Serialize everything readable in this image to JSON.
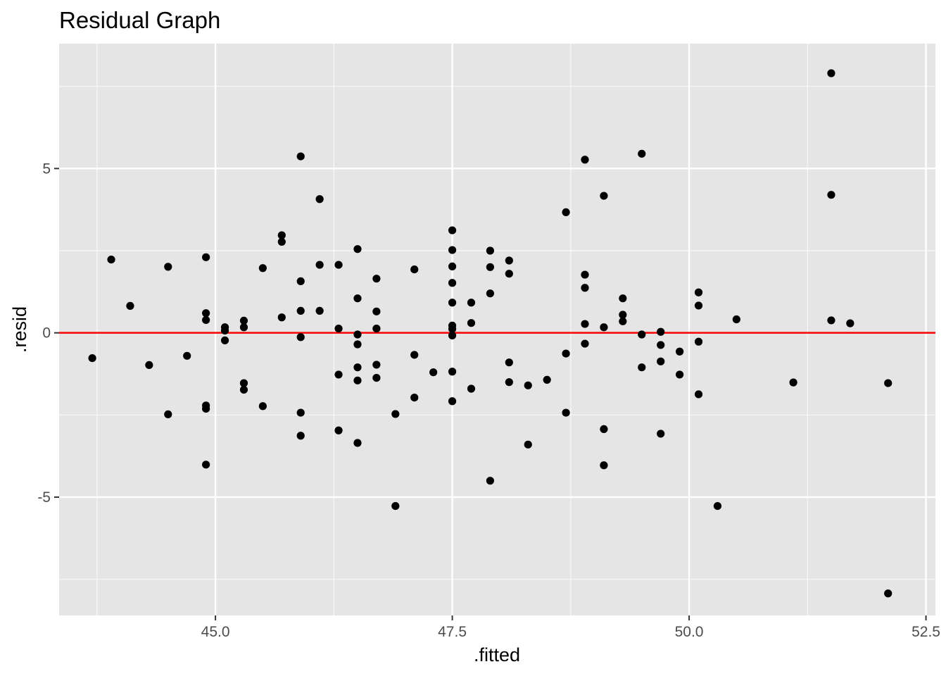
{
  "chart_data": {
    "type": "scatter",
    "title": "Residual Graph",
    "xlabel": ".fitted",
    "ylabel": ".resid",
    "xlim": [
      43.35,
      52.6
    ],
    "ylim": [
      -8.6,
      8.8
    ],
    "x_ticks": [
      45.0,
      47.5,
      50.0,
      52.5
    ],
    "x_tick_labels": [
      "45.0",
      "47.5",
      "50.0",
      "52.5"
    ],
    "y_ticks": [
      -5,
      0,
      5
    ],
    "y_tick_labels": [
      "-5",
      "0",
      "5"
    ],
    "grid": true,
    "panel_background": "#e5e5e5",
    "grid_color": "#ffffff",
    "point_color": "#000000",
    "reference_line": {
      "y": 0,
      "color": "#ff0000"
    },
    "points": [
      {
        "x": 43.7,
        "y": -0.77
      },
      {
        "x": 43.9,
        "y": 2.23
      },
      {
        "x": 44.1,
        "y": 0.82
      },
      {
        "x": 44.3,
        "y": -0.98
      },
      {
        "x": 44.5,
        "y": 2.01
      },
      {
        "x": 44.5,
        "y": -2.48
      },
      {
        "x": 44.7,
        "y": -0.7
      },
      {
        "x": 44.9,
        "y": 2.3
      },
      {
        "x": 44.9,
        "y": 0.6
      },
      {
        "x": 44.9,
        "y": 0.39
      },
      {
        "x": 44.9,
        "y": -2.21
      },
      {
        "x": 44.9,
        "y": -2.31
      },
      {
        "x": 44.9,
        "y": -4.01
      },
      {
        "x": 45.1,
        "y": 0.17
      },
      {
        "x": 45.1,
        "y": 0.07
      },
      {
        "x": 45.1,
        "y": -0.23
      },
      {
        "x": 45.3,
        "y": 0.37
      },
      {
        "x": 45.3,
        "y": 0.17
      },
      {
        "x": 45.3,
        "y": -1.53
      },
      {
        "x": 45.3,
        "y": -1.73
      },
      {
        "x": 45.5,
        "y": 1.97
      },
      {
        "x": 45.5,
        "y": -2.23
      },
      {
        "x": 45.7,
        "y": 2.97
      },
      {
        "x": 45.7,
        "y": 2.77
      },
      {
        "x": 45.7,
        "y": 0.47
      },
      {
        "x": 45.9,
        "y": 5.37
      },
      {
        "x": 45.9,
        "y": 1.57
      },
      {
        "x": 45.9,
        "y": 0.67
      },
      {
        "x": 45.9,
        "y": -0.13
      },
      {
        "x": 45.9,
        "y": -2.43
      },
      {
        "x": 45.9,
        "y": -3.13
      },
      {
        "x": 46.1,
        "y": 4.07
      },
      {
        "x": 46.1,
        "y": 2.07
      },
      {
        "x": 46.1,
        "y": 0.67
      },
      {
        "x": 46.3,
        "y": 2.07
      },
      {
        "x": 46.3,
        "y": 0.13
      },
      {
        "x": 46.3,
        "y": -1.27
      },
      {
        "x": 46.3,
        "y": -2.97
      },
      {
        "x": 46.5,
        "y": 2.55
      },
      {
        "x": 46.5,
        "y": 1.05
      },
      {
        "x": 46.5,
        "y": -0.05
      },
      {
        "x": 46.5,
        "y": -0.35
      },
      {
        "x": 46.5,
        "y": -1.05
      },
      {
        "x": 46.5,
        "y": -1.45
      },
      {
        "x": 46.5,
        "y": -3.35
      },
      {
        "x": 46.7,
        "y": 1.65
      },
      {
        "x": 46.7,
        "y": 0.65
      },
      {
        "x": 46.7,
        "y": 0.13
      },
      {
        "x": 46.7,
        "y": -0.97
      },
      {
        "x": 46.7,
        "y": -1.37
      },
      {
        "x": 46.9,
        "y": -2.47
      },
      {
        "x": 46.9,
        "y": -5.27
      },
      {
        "x": 47.1,
        "y": 1.93
      },
      {
        "x": 47.1,
        "y": -0.67
      },
      {
        "x": 47.1,
        "y": -1.97
      },
      {
        "x": 47.3,
        "y": -1.2
      },
      {
        "x": 47.5,
        "y": 3.12
      },
      {
        "x": 47.5,
        "y": 2.52
      },
      {
        "x": 47.5,
        "y": 2.02
      },
      {
        "x": 47.5,
        "y": 1.52
      },
      {
        "x": 47.5,
        "y": 0.92
      },
      {
        "x": 47.5,
        "y": 0.22
      },
      {
        "x": 47.5,
        "y": 0.12
      },
      {
        "x": 47.5,
        "y": -0.08
      },
      {
        "x": 47.5,
        "y": -1.18
      },
      {
        "x": 47.5,
        "y": -2.08
      },
      {
        "x": 47.7,
        "y": 0.92
      },
      {
        "x": 47.7,
        "y": 0.3
      },
      {
        "x": 47.7,
        "y": -1.7
      },
      {
        "x": 47.9,
        "y": 2.5
      },
      {
        "x": 47.9,
        "y": 2.0
      },
      {
        "x": 47.9,
        "y": 1.2
      },
      {
        "x": 47.9,
        "y": -4.5
      },
      {
        "x": 48.1,
        "y": 2.2
      },
      {
        "x": 48.1,
        "y": 1.8
      },
      {
        "x": 48.1,
        "y": -0.9
      },
      {
        "x": 48.1,
        "y": -1.5
      },
      {
        "x": 48.3,
        "y": -1.6
      },
      {
        "x": 48.3,
        "y": -3.4
      },
      {
        "x": 48.5,
        "y": -1.43
      },
      {
        "x": 48.7,
        "y": 3.67
      },
      {
        "x": 48.7,
        "y": -0.63
      },
      {
        "x": 48.7,
        "y": -2.43
      },
      {
        "x": 48.9,
        "y": 5.27
      },
      {
        "x": 48.9,
        "y": 1.77
      },
      {
        "x": 48.9,
        "y": 1.37
      },
      {
        "x": 48.9,
        "y": 0.27
      },
      {
        "x": 48.9,
        "y": -0.33
      },
      {
        "x": 49.1,
        "y": 4.17
      },
      {
        "x": 49.1,
        "y": 0.17
      },
      {
        "x": 49.1,
        "y": -2.93
      },
      {
        "x": 49.1,
        "y": -4.03
      },
      {
        "x": 49.3,
        "y": 1.05
      },
      {
        "x": 49.3,
        "y": 0.55
      },
      {
        "x": 49.3,
        "y": 0.35
      },
      {
        "x": 49.5,
        "y": 5.45
      },
      {
        "x": 49.5,
        "y": -0.05
      },
      {
        "x": 49.5,
        "y": -1.05
      },
      {
        "x": 49.7,
        "y": 0.03
      },
      {
        "x": 49.7,
        "y": -0.37
      },
      {
        "x": 49.7,
        "y": -0.87
      },
      {
        "x": 49.7,
        "y": -3.07
      },
      {
        "x": 49.9,
        "y": -0.57
      },
      {
        "x": 49.9,
        "y": -1.27
      },
      {
        "x": 50.1,
        "y": 1.23
      },
      {
        "x": 50.1,
        "y": 0.83
      },
      {
        "x": 50.1,
        "y": -0.27
      },
      {
        "x": 50.1,
        "y": -1.87
      },
      {
        "x": 50.3,
        "y": -5.27
      },
      {
        "x": 50.5,
        "y": 0.41
      },
      {
        "x": 51.1,
        "y": -1.51
      },
      {
        "x": 51.5,
        "y": 7.9
      },
      {
        "x": 51.5,
        "y": 4.2
      },
      {
        "x": 51.5,
        "y": 0.38
      },
      {
        "x": 51.7,
        "y": 0.29
      },
      {
        "x": 52.1,
        "y": -1.53
      },
      {
        "x": 52.1,
        "y": -7.93
      }
    ]
  }
}
